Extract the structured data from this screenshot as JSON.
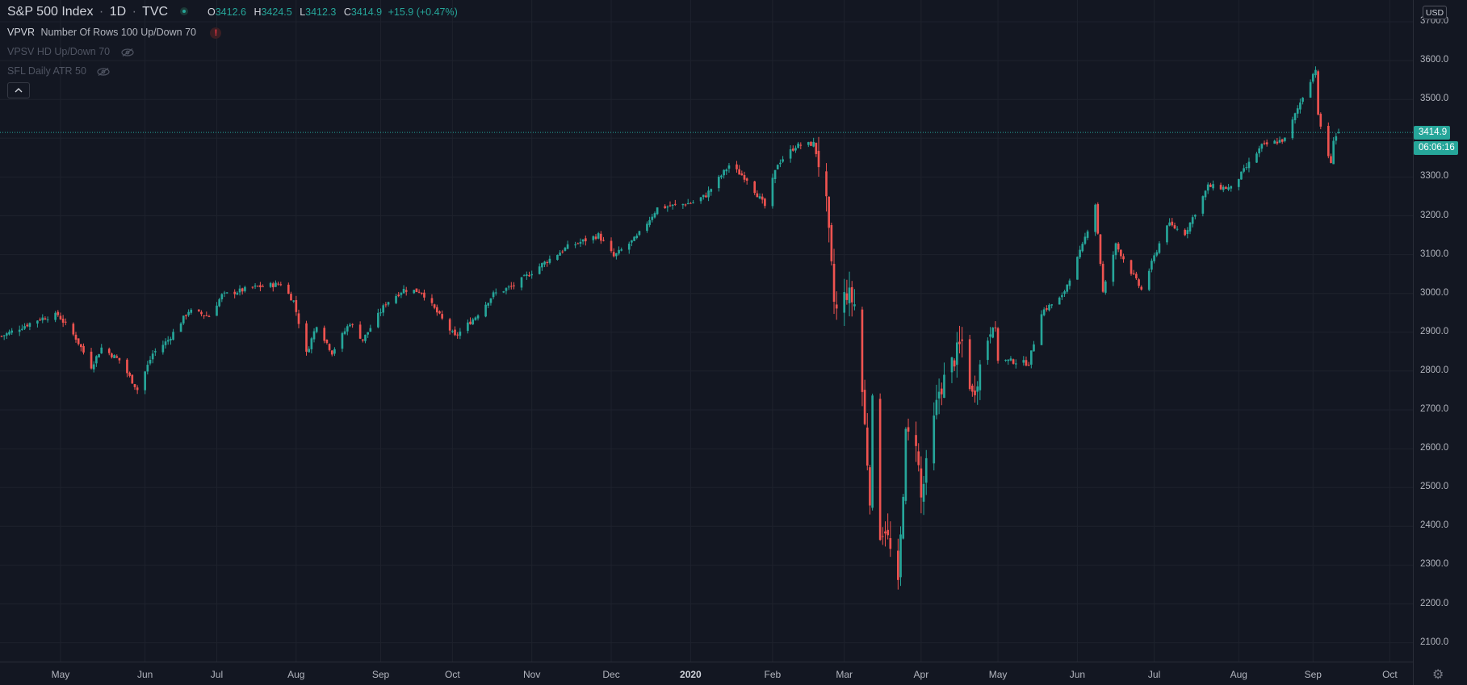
{
  "legend": {
    "symbol": "S&P 500 Index",
    "sep1": "·",
    "interval": "1D",
    "sep2": "·",
    "exchange": "TVC",
    "ohlc": {
      "o_label": "O",
      "o": "3412.6",
      "h_label": "H",
      "h": "3424.5",
      "l_label": "L",
      "l": "3412.3",
      "c_label": "C",
      "c": "3414.9",
      "change": "+15.9 (+0.47%)"
    },
    "indicators": [
      {
        "name": "VPVR",
        "params": "Number Of Rows 100 Up/Down 70",
        "status": "warning",
        "visible": true
      },
      {
        "name": "VPSV HD Up/Down 70",
        "visible": false
      },
      {
        "name": "SFL Daily ATR 50",
        "visible": false
      }
    ]
  },
  "collapse_icon": "chevron-up-icon",
  "currency": "USD",
  "last_price": "3414.9",
  "countdown": "06:06:16",
  "colors": {
    "up": "#26a69a",
    "down": "#ef5350",
    "bg": "#131722",
    "grid": "#1e222d"
  },
  "price_axis": [
    "3700.0",
    "3600.0",
    "3500.0",
    "3400.0",
    "3300.0",
    "3200.0",
    "3100.0",
    "3000.0",
    "2900.0",
    "2800.0",
    "2700.0",
    "2600.0",
    "2500.0",
    "2400.0",
    "2300.0",
    "2200.0",
    "2100.0"
  ],
  "time_axis": [
    "May",
    "Jun",
    "Jul",
    "Aug",
    "Sep",
    "Oct",
    "Nov",
    "Dec",
    "2020",
    "Feb",
    "Mar",
    "Apr",
    "May",
    "Jun",
    "Jul",
    "Aug",
    "Sep",
    "Oct"
  ],
  "settings_icon": "gear-icon",
  "chart_data": {
    "type": "candlestick",
    "ylim": [
      2050,
      3750
    ],
    "price_ticks": [
      3700,
      3600,
      3500,
      3400,
      3300,
      3200,
      3100,
      3000,
      2900,
      2800,
      2700,
      2600,
      2500,
      2400,
      2300,
      2200,
      2100
    ],
    "x_ticks": [
      {
        "label": "May",
        "date": "2019-05-01"
      },
      {
        "label": "Jun",
        "date": "2019-06-03"
      },
      {
        "label": "Jul",
        "date": "2019-07-01"
      },
      {
        "label": "Aug",
        "date": "2019-08-01"
      },
      {
        "label": "Sep",
        "date": "2019-09-03"
      },
      {
        "label": "Oct",
        "date": "2019-10-01"
      },
      {
        "label": "Nov",
        "date": "2019-11-01"
      },
      {
        "label": "Dec",
        "date": "2019-12-02"
      },
      {
        "label": "2020",
        "date": "2020-01-02"
      },
      {
        "label": "Feb",
        "date": "2020-02-03"
      },
      {
        "label": "Mar",
        "date": "2020-03-02"
      },
      {
        "label": "Apr",
        "date": "2020-04-01"
      },
      {
        "label": "May",
        "date": "2020-05-01"
      },
      {
        "label": "Jun",
        "date": "2020-06-01"
      },
      {
        "label": "Jul",
        "date": "2020-07-01"
      },
      {
        "label": "Aug",
        "date": "2020-08-03"
      },
      {
        "label": "Sep",
        "date": "2020-09-01"
      },
      {
        "label": "Oct",
        "date": "2020-10-01"
      }
    ],
    "close_path": [
      [
        "2019-04-08",
        2890
      ],
      [
        "2019-04-23",
        2935
      ],
      [
        "2019-04-30",
        2945
      ],
      [
        "2019-05-07",
        2885
      ],
      [
        "2019-05-13",
        2812
      ],
      [
        "2019-05-17",
        2860
      ],
      [
        "2019-05-24",
        2828
      ],
      [
        "2019-05-31",
        2752
      ],
      [
        "2019-06-06",
        2845
      ],
      [
        "2019-06-12",
        2880
      ],
      [
        "2019-06-20",
        2955
      ],
      [
        "2019-06-28",
        2942
      ],
      [
        "2019-07-03",
        2995
      ],
      [
        "2019-07-15",
        3015
      ],
      [
        "2019-07-26",
        3025
      ],
      [
        "2019-07-31",
        2980
      ],
      [
        "2019-08-05",
        2845
      ],
      [
        "2019-08-09",
        2920
      ],
      [
        "2019-08-15",
        2848
      ],
      [
        "2019-08-22",
        2925
      ],
      [
        "2019-08-27",
        2880
      ],
      [
        "2019-09-05",
        2975
      ],
      [
        "2019-09-12",
        3010
      ],
      [
        "2019-09-19",
        3005
      ],
      [
        "2019-09-24",
        2960
      ],
      [
        "2019-10-02",
        2888
      ],
      [
        "2019-10-10",
        2940
      ],
      [
        "2019-10-17",
        2998
      ],
      [
        "2019-10-25",
        3020
      ],
      [
        "2019-11-05",
        3075
      ],
      [
        "2019-11-15",
        3120
      ],
      [
        "2019-11-27",
        3150
      ],
      [
        "2019-12-03",
        3095
      ],
      [
        "2019-12-12",
        3145
      ],
      [
        "2019-12-20",
        3220
      ],
      [
        "2019-12-31",
        3231
      ],
      [
        "2020-01-03",
        3235
      ],
      [
        "2020-01-08",
        3253
      ],
      [
        "2020-01-17",
        3330
      ],
      [
        "2020-01-24",
        3295
      ],
      [
        "2020-01-31",
        3225
      ],
      [
        "2020-02-05",
        3335
      ],
      [
        "2020-02-12",
        3380
      ],
      [
        "2020-02-19",
        3386
      ],
      [
        "2020-02-21",
        3338
      ],
      [
        "2020-02-24",
        3225
      ],
      [
        "2020-02-27",
        2978
      ],
      [
        "2020-02-28",
        2954
      ],
      [
        "2020-03-03",
        3003
      ],
      [
        "2020-03-06",
        2972
      ],
      [
        "2020-03-09",
        2747
      ],
      [
        "2020-03-12",
        2480
      ],
      [
        "2020-03-13",
        2711
      ],
      [
        "2020-03-16",
        2386
      ],
      [
        "2020-03-18",
        2398
      ],
      [
        "2020-03-23",
        2237
      ],
      [
        "2020-03-26",
        2630
      ],
      [
        "2020-03-30",
        2627
      ],
      [
        "2020-04-01",
        2470
      ],
      [
        "2020-04-08",
        2749
      ],
      [
        "2020-04-17",
        2875
      ],
      [
        "2020-04-21",
        2736
      ],
      [
        "2020-04-29",
        2939
      ],
      [
        "2020-05-01",
        2830
      ],
      [
        "2020-05-13",
        2820
      ],
      [
        "2020-05-18",
        2953
      ],
      [
        "2020-05-26",
        2991
      ],
      [
        "2020-06-03",
        3122
      ],
      [
        "2020-06-08",
        3232
      ],
      [
        "2020-06-11",
        3002
      ],
      [
        "2020-06-16",
        3125
      ],
      [
        "2020-06-26",
        3009
      ],
      [
        "2020-07-06",
        3180
      ],
      [
        "2020-07-13",
        3155
      ],
      [
        "2020-07-22",
        3276
      ],
      [
        "2020-07-31",
        3271
      ],
      [
        "2020-08-12",
        3380
      ],
      [
        "2020-08-21",
        3397
      ],
      [
        "2020-08-28",
        3508
      ],
      [
        "2020-09-02",
        3580
      ],
      [
        "2020-09-03",
        3455
      ],
      [
        "2020-09-08",
        3331
      ],
      [
        "2020-09-09",
        3399
      ],
      [
        "2020-09-11",
        3414.9
      ]
    ],
    "last_candle": {
      "date": "2020-09-11",
      "o": 3412.6,
      "h": 3424.5,
      "l": 3412.3,
      "c": 3414.9
    }
  }
}
